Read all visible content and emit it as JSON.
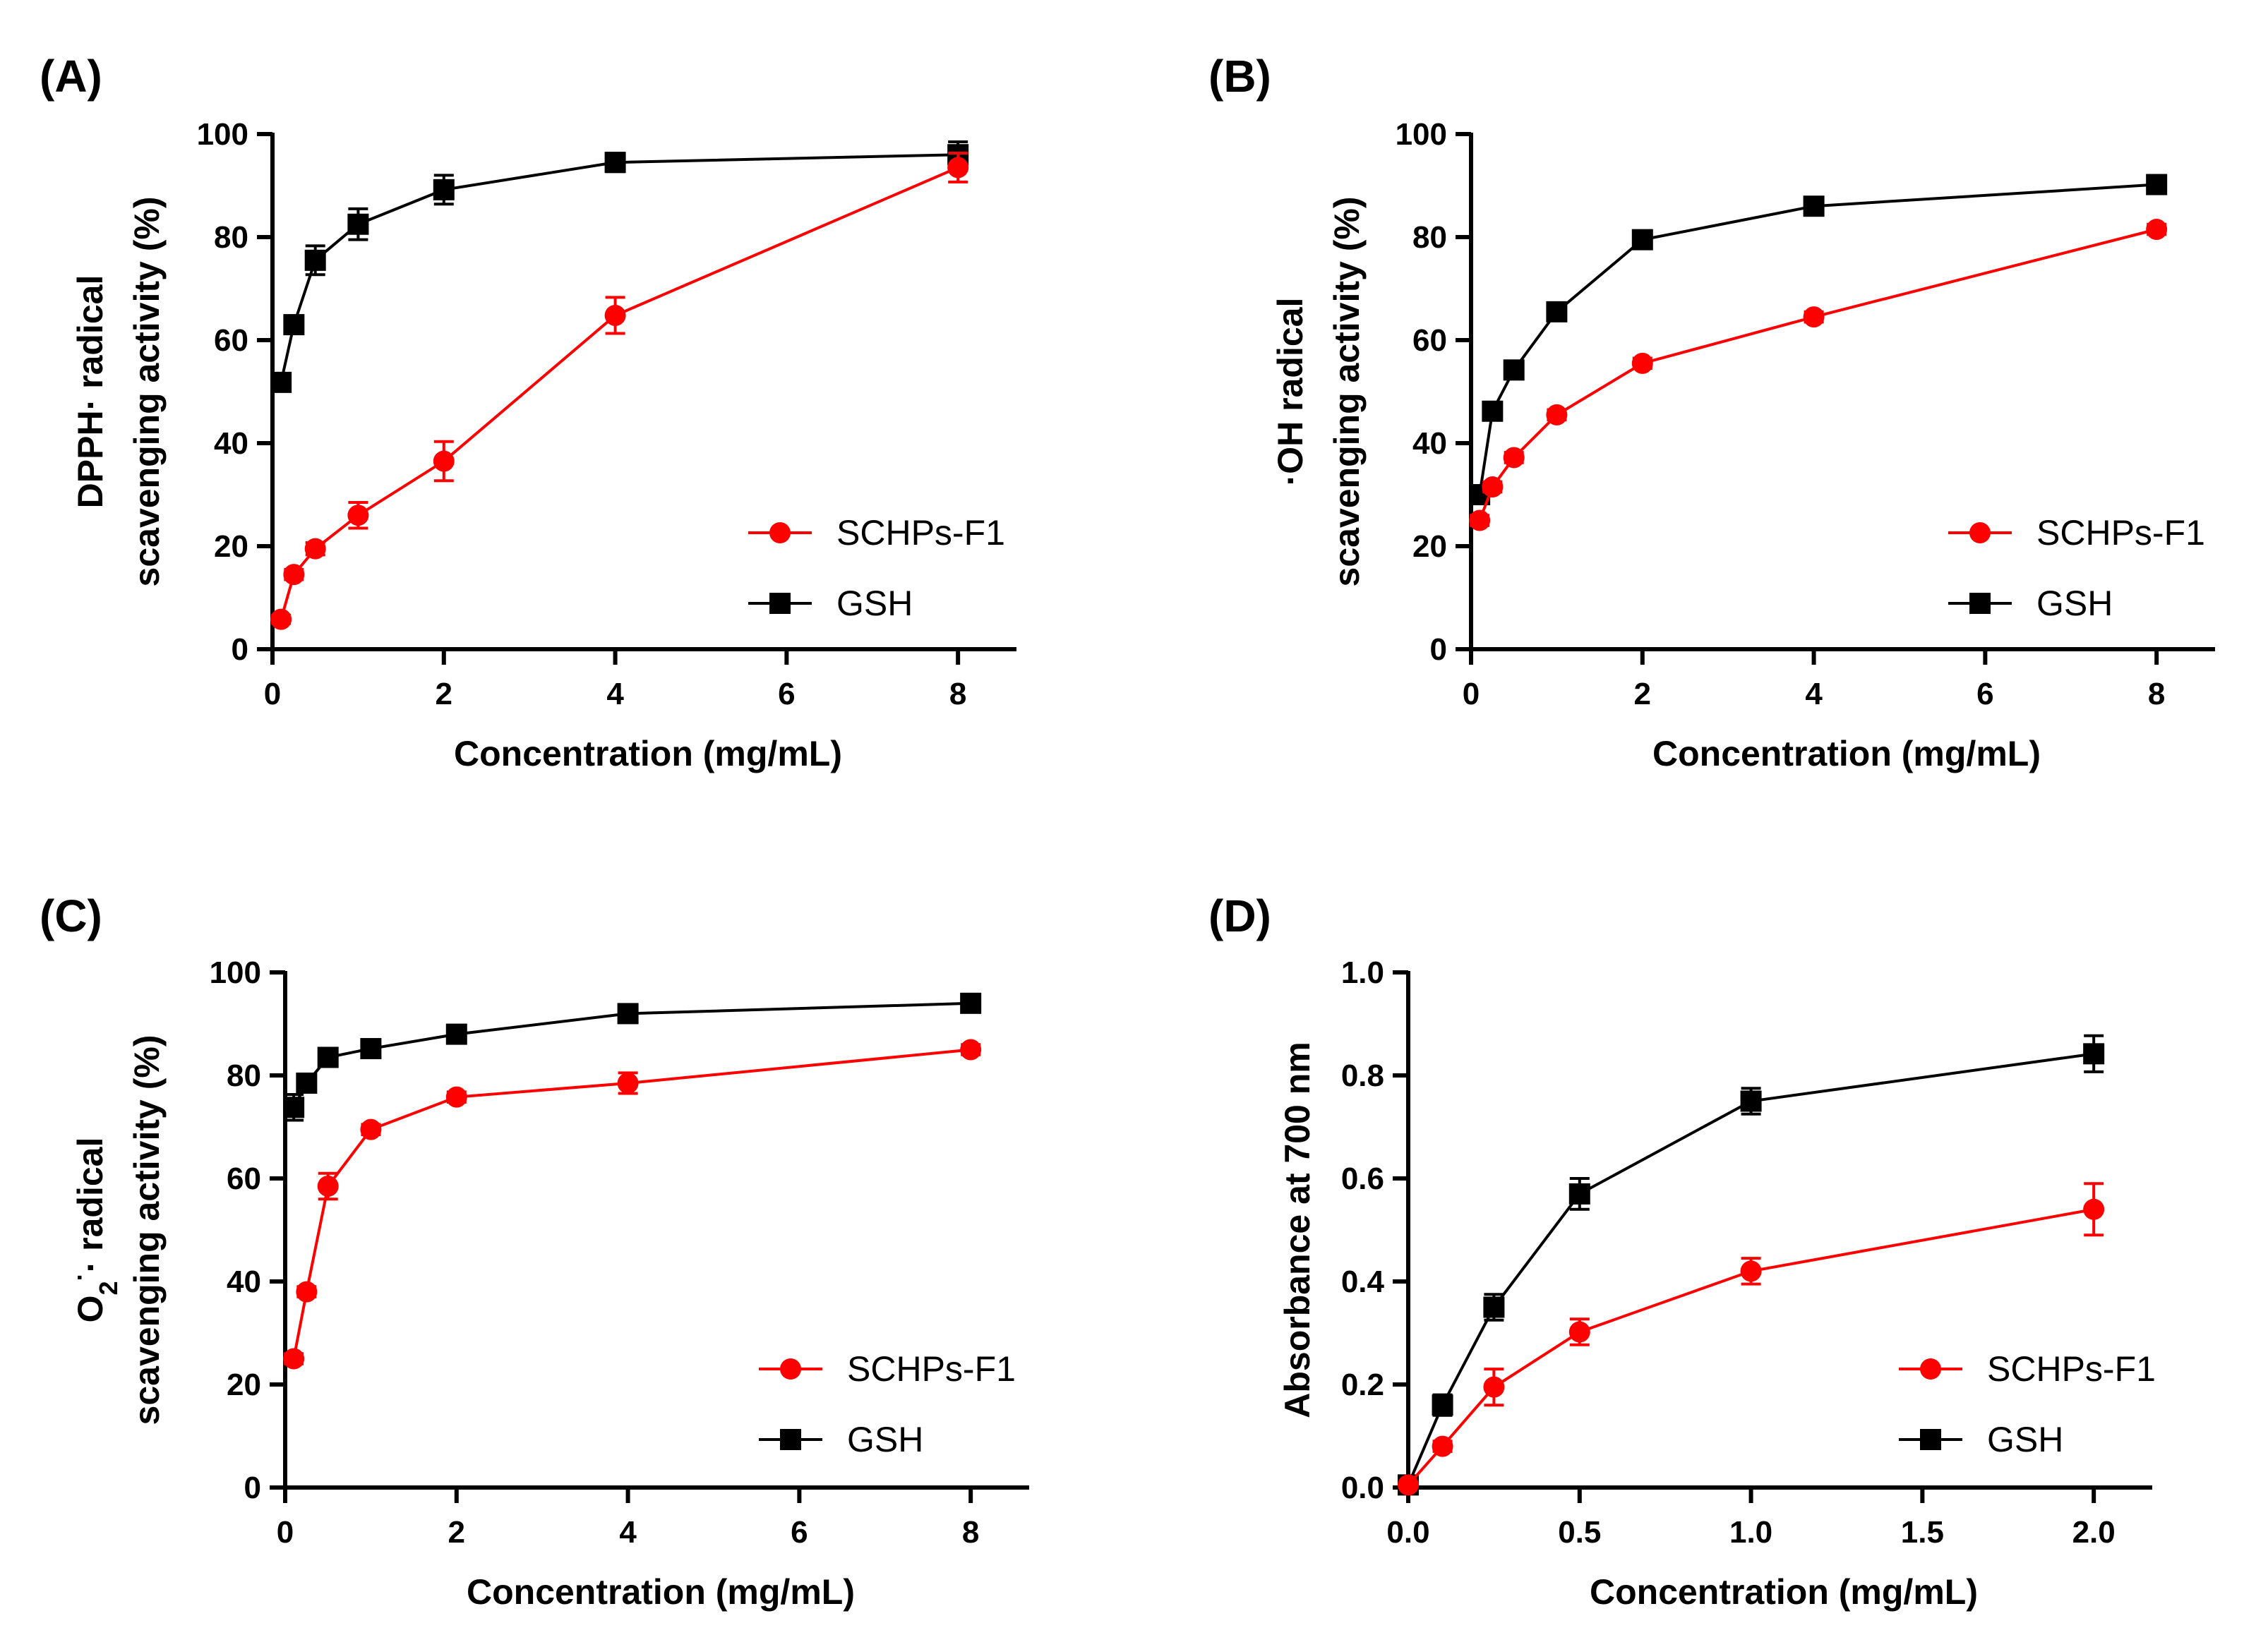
{
  "figure": {
    "background": "#ffffff"
  },
  "colors": {
    "sample": "#ff0000",
    "control": "#000000",
    "axis": "#000000"
  },
  "chart_data": [
    {
      "id": "A",
      "panel_label": "(A)",
      "type": "line",
      "title": "",
      "xlabel": "Concentration (mg/mL)",
      "ylabel_lines": [
        "DPPH· radical",
        "scavenging activity (%)"
      ],
      "xlim": [
        0,
        8.6
      ],
      "ylim": [
        0,
        100
      ],
      "xticks": [
        0,
        2,
        4,
        6,
        8
      ],
      "xtick_labels": [
        "0",
        "2",
        "4",
        "6",
        "8"
      ],
      "yticks": [
        0,
        20,
        40,
        60,
        80,
        100
      ],
      "ytick_labels": [
        "0",
        "20",
        "40",
        "60",
        "80",
        "100"
      ],
      "x_scale": {
        "breaks": [
          [
            0,
            0
          ],
          [
            4,
            4
          ],
          [
            8,
            8
          ]
        ],
        "comment": ""
      },
      "legend_position": "lower-right",
      "series": [
        {
          "name": "SCHPs-F1",
          "color": "#ff0000",
          "marker": "circle",
          "x": [
            0.1,
            0.25,
            0.5,
            1,
            2,
            4,
            8
          ],
          "y": [
            5.8,
            14.5,
            19.5,
            26,
            36.5,
            64.8,
            93.5
          ],
          "err": [
            0.8,
            1.0,
            1.2,
            2.5,
            3.8,
            3.5,
            2.8
          ]
        },
        {
          "name": "GSH",
          "color": "#000000",
          "marker": "square",
          "x": [
            0.1,
            0.25,
            0.5,
            1,
            2,
            4,
            8
          ],
          "y": [
            51.8,
            63,
            75.5,
            82.5,
            89.2,
            94.5,
            96
          ],
          "err": [
            1.0,
            1.5,
            2.8,
            3.0,
            2.8,
            1.8,
            2.5
          ]
        }
      ]
    },
    {
      "id": "B",
      "panel_label": "(B)",
      "type": "line",
      "title": "",
      "xlabel": "Concentration (mg/mL)",
      "ylabel_lines": [
        "·OH radical",
        "scavenging activity (%)"
      ],
      "xlim": [
        0,
        8.6
      ],
      "ylim": [
        0,
        100
      ],
      "xticks": [
        0,
        2,
        4,
        6,
        8
      ],
      "xtick_labels": [
        "0",
        "2",
        "4",
        "6",
        "8"
      ],
      "yticks": [
        0,
        20,
        40,
        60,
        80,
        100
      ],
      "ytick_labels": [
        "0",
        "20",
        "40",
        "60",
        "80",
        "100"
      ],
      "legend_position": "lower-right",
      "series": [
        {
          "name": "SCHPs-F1",
          "color": "#ff0000",
          "marker": "circle",
          "x": [
            0.1,
            0.25,
            0.5,
            1,
            2,
            4,
            8
          ],
          "y": [
            25,
            31.5,
            37.2,
            45.5,
            55.5,
            64.5,
            81.5
          ],
          "err": [
            1.0,
            1.0,
            1.0,
            1.0,
            1.0,
            1.0,
            1.0
          ]
        },
        {
          "name": "GSH",
          "color": "#000000",
          "marker": "square",
          "x": [
            0.1,
            0.25,
            0.5,
            1,
            2,
            4,
            8
          ],
          "y": [
            30,
            46.2,
            54.2,
            65.5,
            79.5,
            86,
            90.2
          ],
          "err": [
            1.0,
            1.0,
            1.0,
            1.0,
            1.0,
            1.0,
            1.0
          ]
        }
      ]
    },
    {
      "id": "C",
      "panel_label": "(C)",
      "type": "line",
      "title": "",
      "xlabel": "Concentration (mg/mL)",
      "ylabel_lines": [
        "O2·· radical",
        "scavenging activity (%)"
      ],
      "ylabel_rich": {
        "base": "O",
        "sub": "2",
        "sup": "·",
        "rest": "· radical"
      },
      "xlim": [
        0,
        8.6
      ],
      "ylim": [
        0,
        100
      ],
      "xticks": [
        0,
        2,
        4,
        6,
        8
      ],
      "xtick_labels": [
        "0",
        "2",
        "4",
        "6",
        "8"
      ],
      "yticks": [
        0,
        20,
        40,
        60,
        80,
        100
      ],
      "ytick_labels": [
        "0",
        "20",
        "40",
        "60",
        "80",
        "100"
      ],
      "legend_position": "lower-right",
      "series": [
        {
          "name": "SCHPs-F1",
          "color": "#ff0000",
          "marker": "circle",
          "x": [
            0.1,
            0.25,
            0.5,
            1,
            2,
            4,
            8
          ],
          "y": [
            25,
            38,
            58.5,
            69.5,
            75.8,
            78.5,
            85
          ],
          "err": [
            1.0,
            1.0,
            2.5,
            1.0,
            1.0,
            2.0,
            1.0
          ]
        },
        {
          "name": "GSH",
          "color": "#000000",
          "marker": "square",
          "x": [
            0.1,
            0.25,
            0.5,
            1,
            2,
            4,
            8
          ],
          "y": [
            73.8,
            78.5,
            83.5,
            85.2,
            88,
            92,
            94
          ],
          "err": [
            2.5,
            1.0,
            1.0,
            1.5,
            1.0,
            1.0,
            1.0
          ]
        }
      ]
    },
    {
      "id": "D",
      "panel_label": "(D)",
      "type": "line",
      "title": "",
      "xlabel": "Concentration (mg/mL)",
      "ylabel_lines": [
        "Absorbance at 700 nm"
      ],
      "xlim": [
        0,
        2.15
      ],
      "ylim": [
        0,
        1.0
      ],
      "xticks": [
        0,
        0.5,
        1.0,
        1.5,
        2.0
      ],
      "xtick_labels": [
        "0.0",
        "0.5",
        "1.0",
        "1.5",
        "2.0"
      ],
      "yticks": [
        0,
        0.2,
        0.4,
        0.6,
        0.8,
        1.0
      ],
      "ytick_labels": [
        "0.0",
        "0.2",
        "0.4",
        "0.6",
        "0.8",
        "1.0"
      ],
      "legend_position": "lower-right",
      "series": [
        {
          "name": "SCHPs-F1",
          "color": "#ff0000",
          "marker": "circle",
          "x": [
            0,
            0.1,
            0.25,
            0.5,
            1,
            2
          ],
          "y": [
            0.005,
            0.08,
            0.195,
            0.302,
            0.42,
            0.54
          ],
          "err": [
            0.005,
            0.01,
            0.035,
            0.025,
            0.025,
            0.05
          ]
        },
        {
          "name": "GSH",
          "color": "#000000",
          "marker": "square",
          "x": [
            0,
            0.1,
            0.25,
            0.5,
            1,
            2
          ],
          "y": [
            0.005,
            0.16,
            0.35,
            0.57,
            0.75,
            0.842
          ],
          "err": [
            0.005,
            0.02,
            0.025,
            0.03,
            0.025,
            0.035
          ]
        }
      ]
    }
  ]
}
